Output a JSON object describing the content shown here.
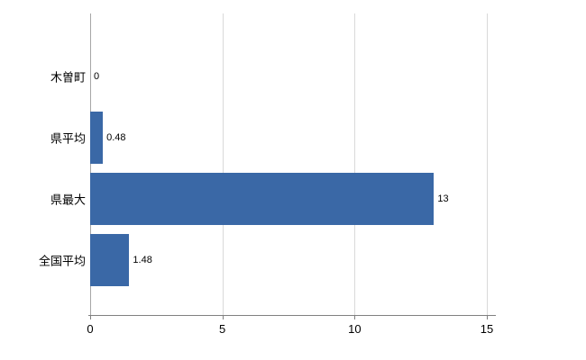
{
  "chart_data": {
    "type": "bar",
    "orientation": "horizontal",
    "title": "",
    "xlabel": "",
    "ylabel": "",
    "categories": [
      "木曽町",
      "県平均",
      "県最大",
      "全国平均"
    ],
    "values": [
      0,
      0.48,
      13,
      1.48
    ],
    "value_labels": [
      "0",
      "0.48",
      "13",
      "1.48"
    ],
    "x_ticks": [
      0,
      5,
      10,
      15
    ],
    "xlim": [
      0,
      15.25
    ],
    "grid": true,
    "legend": false,
    "bar_color": "#3a68a6",
    "gridline_color": "#d9d9d9",
    "axis_color": "#808080",
    "text_color": "#000000"
  }
}
